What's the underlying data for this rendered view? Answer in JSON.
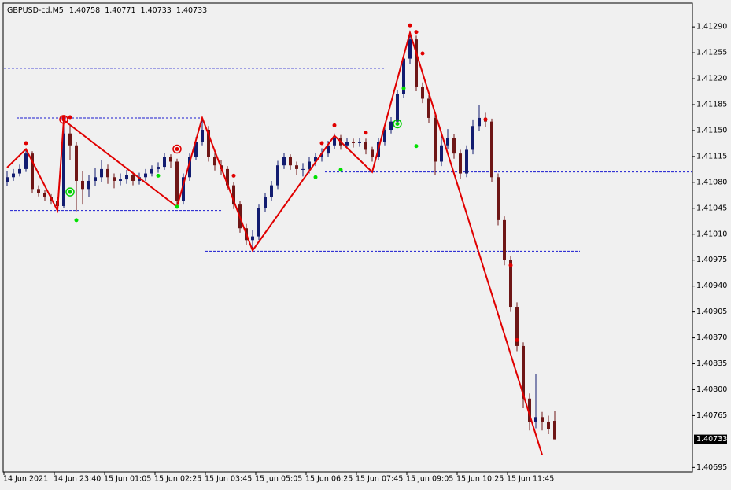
{
  "chart_data": {
    "type": "candlestick",
    "symbol": "GBPUSD-cd,M5",
    "up_color": "#121c70",
    "down_color": "#6e1616",
    "grid": false,
    "categories": [
      "14 Jun 2021",
      null,
      null,
      null,
      null,
      null,
      null,
      null,
      "14 Jun 23:40",
      null,
      null,
      null,
      null,
      null,
      null,
      null,
      "15 Jun 01:05",
      null,
      null,
      null,
      null,
      null,
      null,
      null,
      "15 Jun 02:25",
      null,
      null,
      null,
      null,
      null,
      null,
      null,
      "15 Jun 03:45",
      null,
      null,
      null,
      null,
      null,
      null,
      null,
      "15 Jun 05:05",
      null,
      null,
      null,
      null,
      null,
      null,
      null,
      "15 Jun 06:25",
      null,
      null,
      null,
      null,
      null,
      null,
      null,
      "15 Jun 07:45",
      null,
      null,
      null,
      null,
      null,
      null,
      null,
      "15 Jun 09:05",
      null,
      null,
      null,
      null,
      null,
      null,
      null,
      "15 Jun 10:25",
      null,
      null,
      null,
      null,
      null,
      null,
      null,
      "15 Jun 11:45",
      null,
      null,
      null,
      null,
      null,
      null,
      null
    ],
    "open": [
      1.4108,
      1.41087,
      1.41092,
      1.41098,
      1.41119,
      1.41071,
      1.41066,
      1.4106,
      1.41055,
      1.41048,
      1.41146,
      1.4113,
      1.41082,
      1.41071,
      1.41082,
      1.41087,
      1.41098,
      1.41087,
      1.41082,
      1.41084,
      1.4109,
      1.41082,
      1.41087,
      1.41092,
      1.41098,
      1.41101,
      1.41114,
      1.41108,
      1.41055,
      1.41087,
      1.41114,
      1.41135,
      1.41151,
      1.41114,
      1.41103,
      1.41098,
      1.41076,
      1.4105,
      1.41018,
      1.41002,
      1.41007,
      1.41045,
      1.4106,
      1.41076,
      1.41103,
      1.41114,
      1.41103,
      1.41098,
      1.41098,
      1.41108,
      1.41114,
      1.41119,
      1.4113,
      1.4114,
      1.4113,
      1.41135,
      1.41133,
      1.41135,
      1.41124,
      1.41114,
      1.41135,
      1.41151,
      1.41162,
      1.41199,
      1.41247,
      1.41273,
      1.41209,
      1.41193,
      1.41167,
      1.41108,
      1.4113,
      1.4114,
      1.41119,
      1.41092,
      1.41124,
      1.41156,
      1.41167,
      1.41162,
      1.41087,
      1.41029,
      1.40975,
      1.40912,
      1.40859,
      1.40788,
      1.40757,
      1.40763,
      1.40757,
      1.40758
    ],
    "high": [
      1.41095,
      1.41098,
      1.41104,
      1.41125,
      1.41122,
      1.41076,
      1.4107,
      1.41064,
      1.4106,
      1.41164,
      1.41158,
      1.41135,
      1.41095,
      1.4109,
      1.411,
      1.4111,
      1.41104,
      1.41092,
      1.41092,
      1.41097,
      1.41094,
      1.41093,
      1.41098,
      1.41103,
      1.41107,
      1.4112,
      1.41118,
      1.41112,
      1.41092,
      1.41119,
      1.41141,
      1.41167,
      1.41156,
      1.4112,
      1.4111,
      1.41102,
      1.4108,
      1.41055,
      1.41024,
      1.41015,
      1.4105,
      1.41066,
      1.41082,
      1.41109,
      1.4112,
      1.41118,
      1.41108,
      1.41106,
      1.41114,
      1.4112,
      1.41126,
      1.41136,
      1.41146,
      1.41144,
      1.4114,
      1.41139,
      1.4114,
      1.41139,
      1.41128,
      1.4114,
      1.41156,
      1.41168,
      1.41205,
      1.41253,
      1.41282,
      1.41278,
      1.41215,
      1.41198,
      1.41172,
      1.4115,
      1.41152,
      1.41145,
      1.41124,
      1.4113,
      1.41165,
      1.41185,
      1.41174,
      1.41166,
      1.41092,
      1.41034,
      1.4098,
      1.40918,
      1.40864,
      1.40795,
      1.40821,
      1.4077,
      1.40765,
      1.40771
    ],
    "low": [
      1.41075,
      1.41082,
      1.41088,
      1.41094,
      1.41066,
      1.41061,
      1.41055,
      1.4105,
      1.41042,
      1.41045,
      1.4111,
      1.41041,
      1.4105,
      1.4106,
      1.41075,
      1.4108,
      1.41078,
      1.41072,
      1.41076,
      1.41078,
      1.41076,
      1.41077,
      1.41082,
      1.41088,
      1.41093,
      1.41097,
      1.411,
      1.41047,
      1.4105,
      1.41082,
      1.4111,
      1.4113,
      1.41108,
      1.41096,
      1.4109,
      1.4107,
      1.41044,
      1.41012,
      1.40995,
      1.40988,
      1.41002,
      1.4104,
      1.41055,
      1.41071,
      1.41098,
      1.41097,
      1.4109,
      1.41088,
      1.41092,
      1.41102,
      1.41108,
      1.41114,
      1.41125,
      1.41124,
      1.41125,
      1.41127,
      1.41128,
      1.41118,
      1.41108,
      1.4111,
      1.4113,
      1.41146,
      1.41157,
      1.41194,
      1.4124,
      1.41203,
      1.41187,
      1.4116,
      1.4109,
      1.41102,
      1.41125,
      1.41112,
      1.41085,
      1.41087,
      1.41118,
      1.4115,
      1.41155,
      1.4108,
      1.41022,
      1.40968,
      1.40905,
      1.40852,
      1.40775,
      1.40745,
      1.40748,
      1.40745,
      1.4074,
      1.40733
    ],
    "close": [
      1.41087,
      1.41092,
      1.41098,
      1.41119,
      1.41071,
      1.41066,
      1.4106,
      1.41055,
      1.41048,
      1.41146,
      1.4113,
      1.41082,
      1.41071,
      1.41082,
      1.41087,
      1.41098,
      1.41087,
      1.41082,
      1.41084,
      1.4109,
      1.41082,
      1.41087,
      1.41092,
      1.41098,
      1.41101,
      1.41114,
      1.41108,
      1.41055,
      1.41087,
      1.41114,
      1.41135,
      1.41151,
      1.41114,
      1.41103,
      1.41098,
      1.41076,
      1.4105,
      1.41018,
      1.41002,
      1.41007,
      1.41045,
      1.4106,
      1.41076,
      1.41103,
      1.41114,
      1.41103,
      1.41098,
      1.41098,
      1.41108,
      1.41114,
      1.41119,
      1.4113,
      1.4114,
      1.4113,
      1.41135,
      1.41133,
      1.41135,
      1.41124,
      1.41114,
      1.41135,
      1.41151,
      1.41162,
      1.41199,
      1.41247,
      1.41273,
      1.41209,
      1.41193,
      1.41167,
      1.41108,
      1.4113,
      1.4114,
      1.41119,
      1.41092,
      1.41124,
      1.41156,
      1.41167,
      1.41162,
      1.41087,
      1.41029,
      1.40975,
      1.40912,
      1.40859,
      1.40788,
      1.40757,
      1.40763,
      1.40757,
      1.40747,
      1.40733
    ],
    "ylim": [
      1.40689,
      1.41322
    ],
    "yticks": [
      {
        "value": 1.4129,
        "label": "1.41290"
      },
      1.41255,
      {
        "value": 1.4122,
        "label": "1.41220"
      },
      1.41185,
      {
        "value": 1.4115,
        "label": "1.41150"
      },
      1.41115,
      {
        "value": 1.4108,
        "label": "1.41080"
      },
      1.41045,
      {
        "value": 1.4101,
        "label": "1.41010"
      },
      1.40975,
      {
        "value": 1.4094,
        "label": "1.40940"
      },
      1.40905,
      {
        "value": 1.4087,
        "label": "1.40870"
      },
      1.40835,
      {
        "value": 1.408,
        "label": "1.40800"
      },
      1.40765,
      1.40695
    ],
    "zigzag": {
      "color": "#e00000",
      "x": [
        0,
        3,
        8,
        9,
        27,
        31,
        39,
        52,
        58,
        64,
        85
      ],
      "values": [
        1.411,
        1.41125,
        1.41042,
        1.41164,
        1.41047,
        1.41167,
        1.40988,
        1.41143,
        1.41094,
        1.41282,
        1.40712
      ]
    },
    "levels": {
      "color": "#1a1ad0",
      "values": [
        1.41234,
        1.41167,
        1.41094,
        1.41042,
        1.40987
      ],
      "start": [
        0,
        2,
        51,
        1,
        32
      ],
      "end": [
        60,
        31,
        109,
        34,
        91
      ]
    },
    "fractal_high": {
      "color": "#e00000",
      "x": [
        3,
        9,
        10,
        36,
        50,
        52,
        57,
        64,
        65,
        66,
        76,
        80,
        81
      ],
      "values": [
        1.41133,
        1.41168,
        1.41168,
        1.41089,
        1.41133,
        1.41157,
        1.41147,
        1.41292,
        1.41283,
        1.41254,
        1.41165,
        1.40968,
        1.40867
      ]
    },
    "fractal_low": {
      "color": "#00e000",
      "x": [
        11,
        24,
        27,
        49,
        53,
        63,
        65
      ],
      "values": [
        1.41029,
        1.41089,
        1.41047,
        1.41087,
        1.41097,
        1.41207,
        1.41129
      ]
    },
    "ring_high": {
      "color": "#e00000",
      "x": [
        9,
        27
      ],
      "values": [
        1.41165,
        1.41125
      ]
    },
    "ring_low": {
      "color": "#00d000",
      "x": [
        10,
        62
      ],
      "values": [
        1.41067,
        1.41159
      ]
    }
  }
}
